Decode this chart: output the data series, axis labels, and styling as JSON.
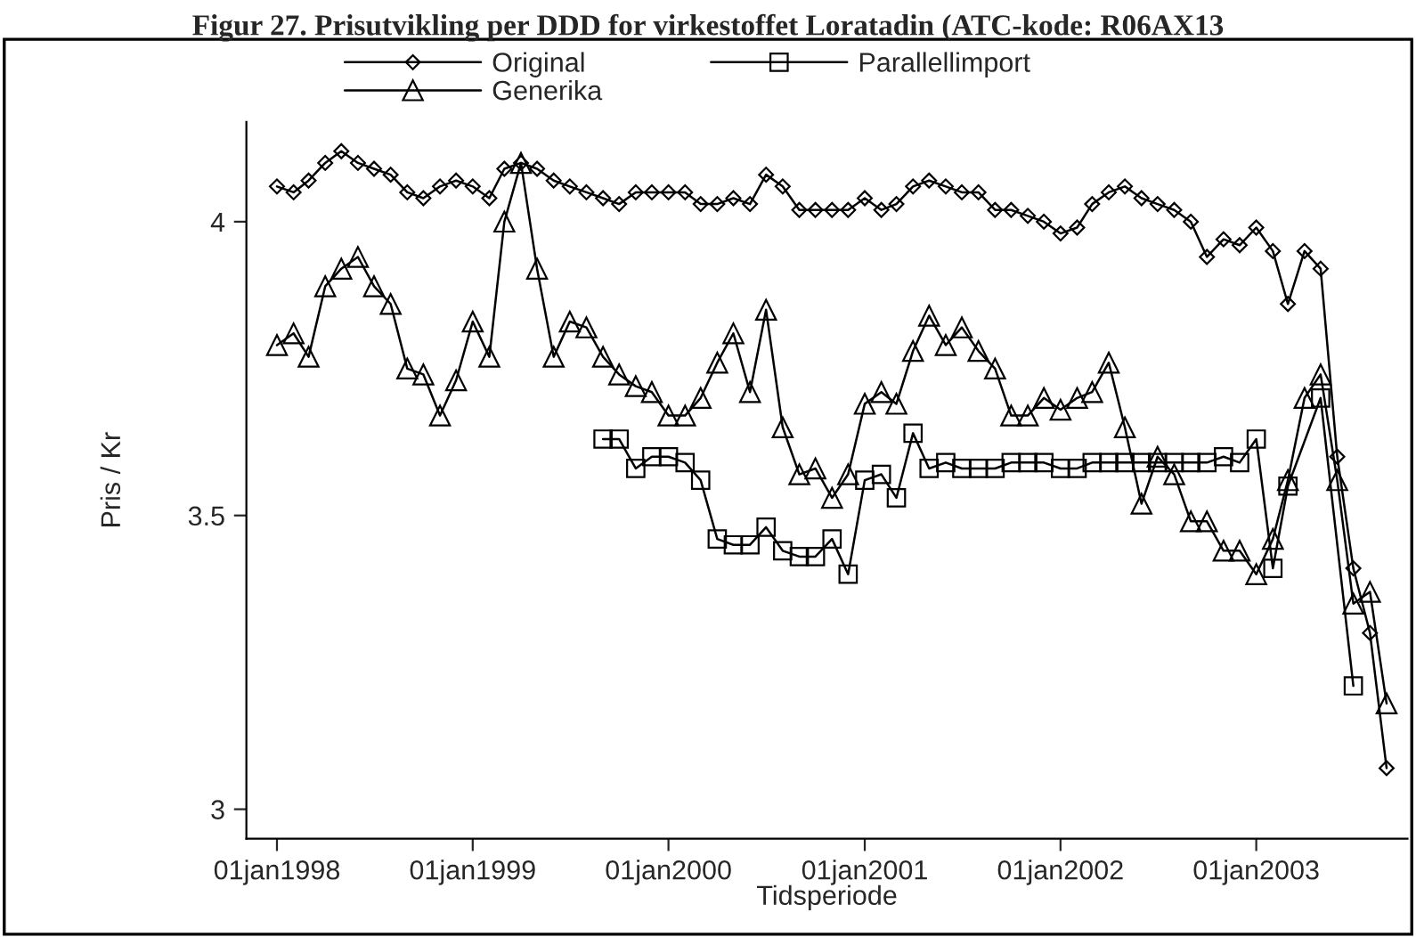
{
  "chart_data": {
    "type": "line",
    "title": "Figur 27. Prisutvikling per DDD for virkestoffet Loratadin (ATC-kode: R06AX13",
    "xlabel": "Tidsperiode",
    "ylabel": "Pris / Kr",
    "x": [
      "1998-01",
      "1998-02",
      "1998-03",
      "1998-04",
      "1998-05",
      "1998-06",
      "1998-07",
      "1998-08",
      "1998-09",
      "1998-10",
      "1998-11",
      "1998-12",
      "1999-01",
      "1999-02",
      "1999-03",
      "1999-04",
      "1999-05",
      "1999-06",
      "1999-07",
      "1999-08",
      "1999-09",
      "1999-10",
      "1999-11",
      "1999-12",
      "2000-01",
      "2000-02",
      "2000-03",
      "2000-04",
      "2000-05",
      "2000-06",
      "2000-07",
      "2000-08",
      "2000-09",
      "2000-10",
      "2000-11",
      "2000-12",
      "2001-01",
      "2001-02",
      "2001-03",
      "2001-04",
      "2001-05",
      "2001-06",
      "2001-07",
      "2001-08",
      "2001-09",
      "2001-10",
      "2001-11",
      "2001-12",
      "2002-01",
      "2002-02",
      "2002-03",
      "2002-04",
      "2002-05",
      "2002-06",
      "2002-07",
      "2002-08",
      "2002-09",
      "2002-10",
      "2002-11",
      "2002-12",
      "2003-01",
      "2003-02",
      "2003-03",
      "2003-04",
      "2003-05",
      "2003-06",
      "2003-07",
      "2003-08",
      "2003-09"
    ],
    "series": [
      {
        "name": "Original",
        "color": "#000000",
        "marker": "diamond",
        "values": [
          4.06,
          4.05,
          4.07,
          4.1,
          4.12,
          4.1,
          4.09,
          4.08,
          4.05,
          4.04,
          4.06,
          4.07,
          4.06,
          4.04,
          4.09,
          4.1,
          4.09,
          4.07,
          4.06,
          4.05,
          4.04,
          4.03,
          4.05,
          4.05,
          4.05,
          4.05,
          4.03,
          4.03,
          4.04,
          4.03,
          4.08,
          4.06,
          4.02,
          4.02,
          4.02,
          4.02,
          4.04,
          4.02,
          4.03,
          4.06,
          4.07,
          4.06,
          4.05,
          4.05,
          4.02,
          4.02,
          4.01,
          4.0,
          3.98,
          3.99,
          4.03,
          4.05,
          4.06,
          4.04,
          4.03,
          4.02,
          4.0,
          3.94,
          3.97,
          3.96,
          3.99,
          3.95,
          3.86,
          3.95,
          3.92,
          3.6,
          3.41,
          3.3,
          3.07
        ]
      },
      {
        "name": "Generika",
        "color": "#000000",
        "marker": "triangle",
        "values": [
          3.79,
          3.81,
          3.77,
          3.89,
          3.92,
          3.94,
          3.89,
          3.86,
          3.75,
          3.74,
          3.67,
          3.73,
          3.83,
          3.77,
          4.0,
          4.1,
          3.92,
          3.77,
          3.83,
          3.82,
          3.77,
          3.74,
          3.72,
          3.71,
          3.67,
          3.67,
          3.7,
          3.76,
          3.81,
          3.71,
          3.85,
          3.65,
          3.57,
          3.58,
          3.53,
          3.57,
          3.69,
          3.71,
          3.69,
          3.78,
          3.84,
          3.79,
          3.82,
          3.78,
          3.75,
          3.67,
          3.67,
          3.7,
          3.68,
          3.7,
          3.71,
          3.76,
          3.65,
          3.52,
          3.6,
          3.57,
          3.49,
          3.49,
          3.44,
          3.44,
          3.4,
          3.46,
          3.56,
          3.7,
          3.74,
          3.56,
          3.35,
          3.37,
          3.18
        ]
      },
      {
        "name": "Parallellimport",
        "color": "#000000",
        "marker": "square",
        "values": [
          null,
          null,
          null,
          null,
          null,
          null,
          null,
          null,
          null,
          null,
          null,
          null,
          null,
          null,
          null,
          null,
          null,
          null,
          null,
          null,
          3.63,
          3.63,
          3.58,
          3.6,
          3.6,
          3.59,
          3.56,
          3.46,
          3.45,
          3.45,
          3.48,
          3.44,
          3.43,
          3.43,
          3.46,
          3.4,
          3.56,
          3.57,
          3.53,
          3.64,
          3.58,
          3.59,
          3.58,
          3.58,
          3.58,
          3.59,
          3.59,
          3.59,
          3.58,
          3.58,
          3.59,
          3.59,
          3.59,
          3.59,
          3.59,
          3.59,
          3.59,
          3.59,
          3.6,
          3.59,
          3.63,
          3.41,
          3.55,
          null,
          3.7,
          null,
          3.21,
          null,
          null
        ]
      }
    ],
    "xlim": [
      "1997-11-05",
      "2003-10-10"
    ],
    "xticks": [
      {
        "value": "1998-01-01",
        "label": "01jan1998"
      },
      {
        "value": "1999-01-01",
        "label": "01jan1999"
      },
      {
        "value": "2000-01-01",
        "label": "01jan2000"
      },
      {
        "value": "2001-01-01",
        "label": "01jan2001"
      },
      {
        "value": "2002-01-01",
        "label": "01jan2002"
      },
      {
        "value": "2003-01-01",
        "label": "01jan2003"
      }
    ],
    "ylim": [
      2.95,
      4.17
    ],
    "yticks": [
      3,
      3.5,
      4
    ],
    "legend": "top",
    "grid": false,
    "line_style": "solid"
  }
}
